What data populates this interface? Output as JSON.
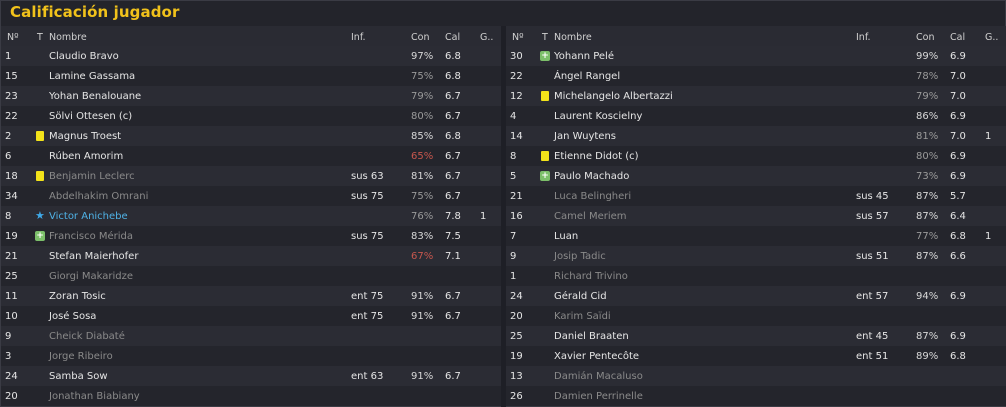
{
  "title": "Calificación jugador",
  "columns": {
    "num": "Nº",
    "t": "T",
    "name": "Nombre",
    "inf": "Inf.",
    "con": "Con",
    "cal": "Cal",
    "g": "G.."
  },
  "left": [
    {
      "num": "1",
      "icon": "",
      "name": "Claudio Bravo",
      "inf": "",
      "con": "97%",
      "con_tone": "hi",
      "cal": "6.8",
      "g": "",
      "status": "play"
    },
    {
      "num": "15",
      "icon": "",
      "name": "Lamine Gassama",
      "inf": "",
      "con": "75%",
      "con_tone": "mid",
      "cal": "6.8",
      "g": "",
      "status": "play"
    },
    {
      "num": "23",
      "icon": "",
      "name": "Yohan Benalouane",
      "inf": "",
      "con": "79%",
      "con_tone": "mid",
      "cal": "6.7",
      "g": "",
      "status": "play"
    },
    {
      "num": "22",
      "icon": "",
      "name": "Sölvi Ottesen (c)",
      "inf": "",
      "con": "80%",
      "con_tone": "mid",
      "cal": "6.7",
      "g": "",
      "status": "play"
    },
    {
      "num": "2",
      "icon": "yellow-card",
      "name": "Magnus Troest",
      "inf": "",
      "con": "85%",
      "con_tone": "hi",
      "cal": "6.8",
      "g": "",
      "status": "play"
    },
    {
      "num": "6",
      "icon": "",
      "name": "Rúben Amorim",
      "inf": "",
      "con": "65%",
      "con_tone": "low",
      "cal": "6.7",
      "g": "",
      "status": "play"
    },
    {
      "num": "18",
      "icon": "yellow-card",
      "name": "Benjamin Leclerc",
      "inf": "sus 63",
      "con": "81%",
      "con_tone": "hi",
      "cal": "6.7",
      "g": "",
      "status": "sub"
    },
    {
      "num": "34",
      "icon": "",
      "name": "Abdelhakim Omrani",
      "inf": "sus 75",
      "con": "75%",
      "con_tone": "mid",
      "cal": "6.7",
      "g": "",
      "status": "sub"
    },
    {
      "num": "8",
      "icon": "star",
      "name": "Victor Anichebe",
      "inf": "",
      "con": "76%",
      "con_tone": "mid",
      "cal": "7.8",
      "g": "1",
      "status": "star"
    },
    {
      "num": "19",
      "icon": "plus",
      "name": "Francisco Mérida",
      "inf": "sus 75",
      "con": "83%",
      "con_tone": "hi",
      "cal": "7.5",
      "g": "",
      "status": "sub"
    },
    {
      "num": "21",
      "icon": "",
      "name": "Stefan Maierhofer",
      "inf": "",
      "con": "67%",
      "con_tone": "low",
      "cal": "7.1",
      "g": "",
      "status": "play"
    },
    {
      "num": "25",
      "icon": "",
      "name": "Giorgi Makaridze",
      "inf": "",
      "con": "",
      "con_tone": "mid",
      "cal": "",
      "g": "",
      "status": "sub"
    },
    {
      "num": "11",
      "icon": "",
      "name": "Zoran Tosic",
      "inf": "ent 75",
      "con": "91%",
      "con_tone": "hi",
      "cal": "6.7",
      "g": "",
      "status": "play"
    },
    {
      "num": "10",
      "icon": "",
      "name": "José Sosa",
      "inf": "ent 75",
      "con": "91%",
      "con_tone": "hi",
      "cal": "6.7",
      "g": "",
      "status": "play"
    },
    {
      "num": "9",
      "icon": "",
      "name": "Cheick Diabaté",
      "inf": "",
      "con": "",
      "con_tone": "mid",
      "cal": "",
      "g": "",
      "status": "sub"
    },
    {
      "num": "3",
      "icon": "",
      "name": "Jorge Ribeiro",
      "inf": "",
      "con": "",
      "con_tone": "mid",
      "cal": "",
      "g": "",
      "status": "sub"
    },
    {
      "num": "24",
      "icon": "",
      "name": "Samba Sow",
      "inf": "ent 63",
      "con": "91%",
      "con_tone": "hi",
      "cal": "6.7",
      "g": "",
      "status": "play"
    },
    {
      "num": "20",
      "icon": "",
      "name": "Jonathan Biabiany",
      "inf": "",
      "con": "",
      "con_tone": "mid",
      "cal": "",
      "g": "",
      "status": "sub"
    }
  ],
  "right": [
    {
      "num": "30",
      "icon": "plus",
      "name": "Yohann Pelé",
      "inf": "",
      "con": "99%",
      "con_tone": "hi",
      "cal": "6.9",
      "g": "",
      "status": "play"
    },
    {
      "num": "22",
      "icon": "",
      "name": "Ángel Rangel",
      "inf": "",
      "con": "78%",
      "con_tone": "mid",
      "cal": "7.0",
      "g": "",
      "status": "play"
    },
    {
      "num": "12",
      "icon": "yellow-card",
      "name": "Michelangelo Albertazzi",
      "inf": "",
      "con": "79%",
      "con_tone": "mid",
      "cal": "7.0",
      "g": "",
      "status": "play"
    },
    {
      "num": "4",
      "icon": "",
      "name": "Laurent Koscielny",
      "inf": "",
      "con": "86%",
      "con_tone": "hi",
      "cal": "6.9",
      "g": "",
      "status": "play"
    },
    {
      "num": "14",
      "icon": "",
      "name": "Jan Wuytens",
      "inf": "",
      "con": "81%",
      "con_tone": "mid",
      "cal": "7.0",
      "g": "1",
      "status": "play"
    },
    {
      "num": "8",
      "icon": "yellow-card",
      "name": "Etienne Didot (c)",
      "inf": "",
      "con": "80%",
      "con_tone": "mid",
      "cal": "6.9",
      "g": "",
      "status": "play"
    },
    {
      "num": "5",
      "icon": "plus",
      "name": "Paulo Machado",
      "inf": "",
      "con": "73%",
      "con_tone": "mid",
      "cal": "6.9",
      "g": "",
      "status": "play"
    },
    {
      "num": "21",
      "icon": "",
      "name": "Luca Belingheri",
      "inf": "sus 45",
      "con": "87%",
      "con_tone": "hi",
      "cal": "5.7",
      "g": "",
      "status": "sub"
    },
    {
      "num": "16",
      "icon": "",
      "name": "Camel Meriem",
      "inf": "sus 57",
      "con": "87%",
      "con_tone": "hi",
      "cal": "6.4",
      "g": "",
      "status": "sub"
    },
    {
      "num": "7",
      "icon": "",
      "name": "Luan",
      "inf": "",
      "con": "77%",
      "con_tone": "mid",
      "cal": "6.8",
      "g": "1",
      "status": "play"
    },
    {
      "num": "9",
      "icon": "",
      "name": "Josip Tadic",
      "inf": "sus 51",
      "con": "87%",
      "con_tone": "hi",
      "cal": "6.6",
      "g": "",
      "status": "sub"
    },
    {
      "num": "1",
      "icon": "",
      "name": "Richard Trivino",
      "inf": "",
      "con": "",
      "con_tone": "mid",
      "cal": "",
      "g": "",
      "status": "sub"
    },
    {
      "num": "24",
      "icon": "",
      "name": "Gérald Cid",
      "inf": "ent 57",
      "con": "94%",
      "con_tone": "hi",
      "cal": "6.9",
      "g": "",
      "status": "play"
    },
    {
      "num": "20",
      "icon": "",
      "name": "Karim Saïdi",
      "inf": "",
      "con": "",
      "con_tone": "mid",
      "cal": "",
      "g": "",
      "status": "sub"
    },
    {
      "num": "25",
      "icon": "",
      "name": "Daniel Braaten",
      "inf": "ent 45",
      "con": "87%",
      "con_tone": "hi",
      "cal": "6.9",
      "g": "",
      "status": "play"
    },
    {
      "num": "19",
      "icon": "",
      "name": "Xavier Pentecôte",
      "inf": "ent 51",
      "con": "89%",
      "con_tone": "hi",
      "cal": "6.8",
      "g": "",
      "status": "play"
    },
    {
      "num": "13",
      "icon": "",
      "name": "Damián Macaluso",
      "inf": "",
      "con": "",
      "con_tone": "mid",
      "cal": "",
      "g": "",
      "status": "sub"
    },
    {
      "num": "26",
      "icon": "",
      "name": "Damien Perrinelle",
      "inf": "",
      "con": "",
      "con_tone": "mid",
      "cal": "",
      "g": "",
      "status": "sub"
    }
  ],
  "colors": {
    "title": "#f1c21b",
    "star_name": "#4fb2e6",
    "low_condition": "#c7574e",
    "yellow_card": "#f3e31a",
    "plus_badge": "#7cbf6a"
  }
}
